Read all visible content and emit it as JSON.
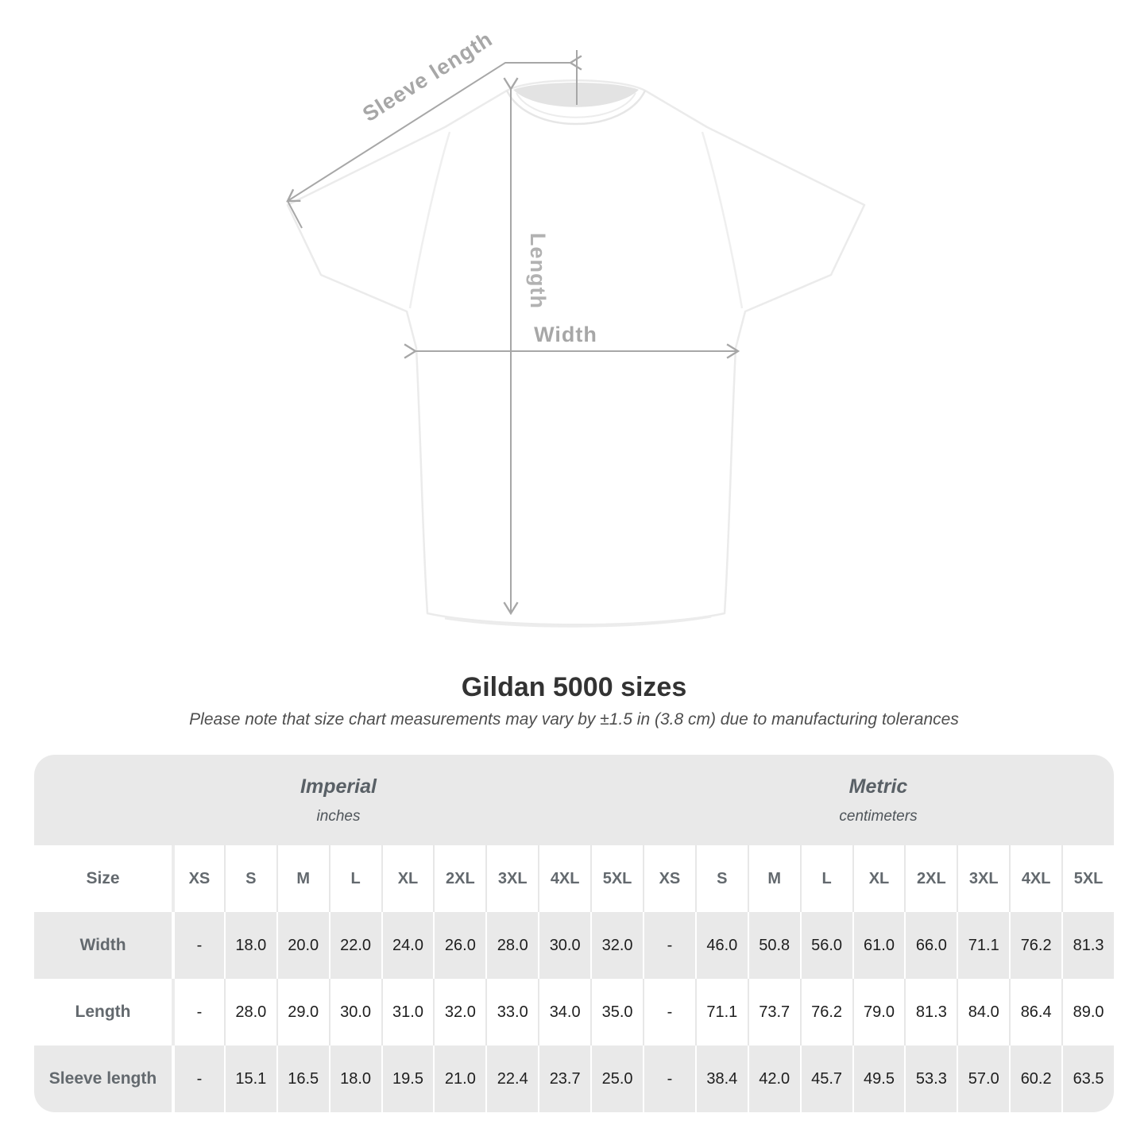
{
  "diagram": {
    "sleeve_length_label": "Sleeve length",
    "length_label": "Length",
    "width_label": "Width"
  },
  "header": {
    "title": "Gildan 5000 sizes",
    "subtitle": "Please note that size chart measurements may vary by ±1.5 in (3.8 cm) due to manufacturing tolerances"
  },
  "chart_data": {
    "type": "table",
    "title": "Gildan 5000 sizes",
    "tolerance_note": "Please note that size chart measurements may vary by ±1.5 in (3.8 cm) due to manufacturing tolerances",
    "size_column_header": "Size",
    "sizes": [
      "XS",
      "S",
      "M",
      "L",
      "XL",
      "2XL",
      "3XL",
      "4XL",
      "5XL"
    ],
    "unit_groups": [
      {
        "label": "Imperial",
        "unit": "inches"
      },
      {
        "label": "Metric",
        "unit": "centimeters"
      }
    ],
    "rows": [
      {
        "label": "Width",
        "imperial": [
          "-",
          "18.0",
          "20.0",
          "22.0",
          "24.0",
          "26.0",
          "28.0",
          "30.0",
          "32.0"
        ],
        "metric": [
          "-",
          "46.0",
          "50.8",
          "56.0",
          "61.0",
          "66.0",
          "71.1",
          "76.2",
          "81.3"
        ]
      },
      {
        "label": "Length",
        "imperial": [
          "-",
          "28.0",
          "29.0",
          "30.0",
          "31.0",
          "32.0",
          "33.0",
          "34.0",
          "35.0"
        ],
        "metric": [
          "-",
          "71.1",
          "73.7",
          "76.2",
          "79.0",
          "81.3",
          "84.0",
          "86.4",
          "89.0"
        ]
      },
      {
        "label": "Sleeve length",
        "imperial": [
          "-",
          "15.1",
          "16.5",
          "18.0",
          "19.5",
          "21.0",
          "22.4",
          "23.7",
          "25.0"
        ],
        "metric": [
          "-",
          "38.4",
          "42.0",
          "45.7",
          "49.5",
          "53.3",
          "57.0",
          "60.2",
          "63.5"
        ]
      }
    ]
  },
  "colors": {
    "table_shade": "#e9e9e9",
    "label_text": "#63696e",
    "value_text": "#1e1e1e",
    "annotation_gray": "#a7a7a7",
    "title_text": "#333333"
  }
}
